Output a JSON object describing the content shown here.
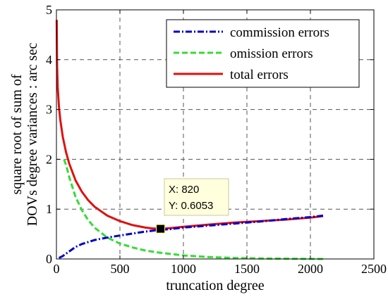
{
  "chart_data": {
    "type": "line",
    "xlabel": "truncation degree",
    "ylabel_line1": "square root of sum of",
    "ylabel_line2": "DOVs degree variances : arc sec",
    "xlim": [
      0,
      2500
    ],
    "ylim": [
      0,
      5
    ],
    "x_ticks": [
      0,
      500,
      1000,
      1500,
      2000,
      2500
    ],
    "x_tick_labels": [
      "0",
      "500",
      "1000",
      "1500",
      "2000",
      "2500"
    ],
    "y_ticks": [
      0,
      1,
      2,
      3,
      4,
      5
    ],
    "y_tick_labels": [
      "0",
      "1",
      "2",
      "3",
      "4",
      "5"
    ],
    "grid": true,
    "legend_position": "top-right",
    "series": [
      {
        "name": "commission errors",
        "style": "dash-dot",
        "color": "#0000cc",
        "x": [
          20,
          50,
          100,
          150,
          200,
          300,
          400,
          500,
          600,
          700,
          800,
          900,
          1000,
          1200,
          1400,
          1600,
          1800,
          2000,
          2100
        ],
        "y": [
          0.02,
          0.06,
          0.15,
          0.24,
          0.3,
          0.38,
          0.43,
          0.47,
          0.51,
          0.55,
          0.58,
          0.6,
          0.63,
          0.67,
          0.71,
          0.75,
          0.8,
          0.84,
          0.87
        ]
      },
      {
        "name": "omission errors",
        "style": "dashed",
        "color": "#33dd33",
        "x": [
          60,
          80,
          100,
          150,
          200,
          250,
          300,
          400,
          500,
          600,
          700,
          800,
          900,
          1000,
          1200,
          1400,
          1600,
          1800,
          2000,
          2100
        ],
        "y": [
          2.0,
          1.85,
          1.65,
          1.25,
          0.98,
          0.78,
          0.63,
          0.43,
          0.31,
          0.23,
          0.17,
          0.13,
          0.1,
          0.07,
          0.04,
          0.02,
          0.01,
          0.005,
          0.0,
          0.0
        ]
      },
      {
        "name": "total errors",
        "style": "solid",
        "color": "#e01010",
        "x": [
          2,
          5,
          10,
          20,
          30,
          50,
          75,
          100,
          150,
          200,
          250,
          300,
          400,
          500,
          600,
          700,
          750,
          800,
          820,
          900,
          1000,
          1200,
          1400,
          1600,
          1800,
          2000,
          2100
        ],
        "y": [
          4.8,
          3.9,
          3.45,
          3.05,
          2.8,
          2.45,
          2.15,
          1.92,
          1.58,
          1.35,
          1.18,
          1.05,
          0.87,
          0.76,
          0.68,
          0.63,
          0.615,
          0.607,
          0.6053,
          0.62,
          0.645,
          0.69,
          0.73,
          0.76,
          0.79,
          0.83,
          0.86
        ]
      }
    ],
    "datatip": {
      "x": 820,
      "y": 0.6053,
      "x_text": "X: 820",
      "y_text": "Y: 0.6053"
    }
  }
}
